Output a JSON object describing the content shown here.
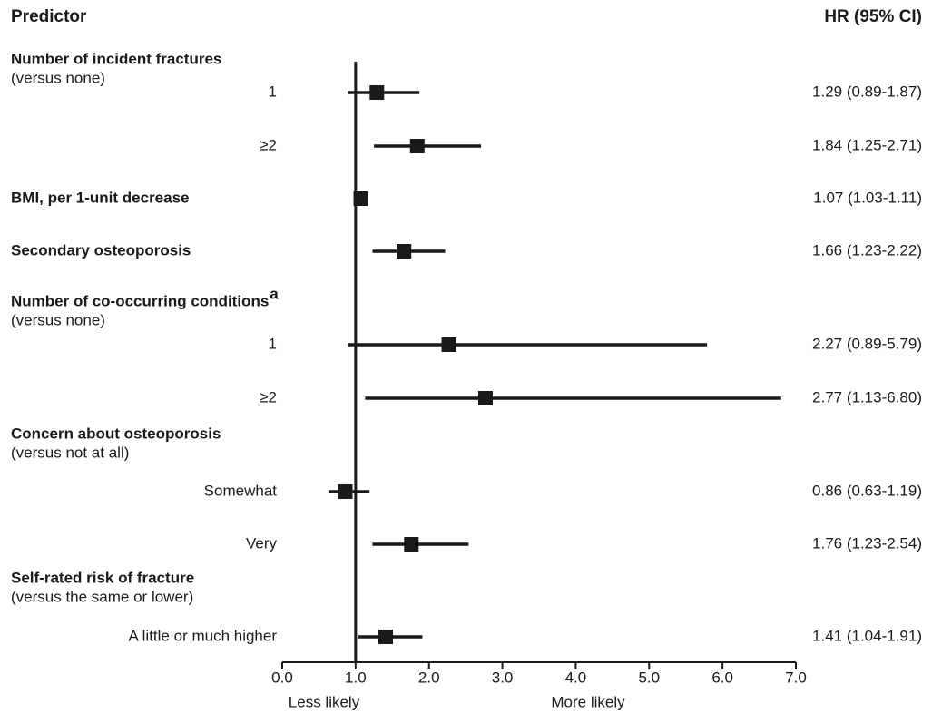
{
  "chart_data": {
    "type": "forest",
    "header_left": "Predictor",
    "header_right": "HR (95% CI)",
    "reference": 1,
    "xlim": [
      0,
      7
    ],
    "xticks": [
      {
        "value": 0,
        "label": "0.0"
      },
      {
        "value": 1,
        "label": "1.0"
      },
      {
        "value": 2,
        "label": "2.0"
      },
      {
        "value": 3,
        "label": "3.0"
      },
      {
        "value": 4,
        "label": "4.0"
      },
      {
        "value": 5,
        "label": "5.0"
      },
      {
        "value": 6,
        "label": "6.0"
      },
      {
        "value": 7,
        "label": "7.0"
      }
    ],
    "x_label_left": "Less likely",
    "x_label_right": "More likely",
    "color": "#1a1a1a",
    "rows": [
      {
        "heading": "Number of incident fractures",
        "note": "(versus none)"
      },
      {
        "label": "1",
        "hr": 1.29,
        "lo": 0.89,
        "hi": 1.87,
        "value_label": "1.29 (0.89-1.87)"
      },
      {
        "label": "≥2",
        "hr": 1.84,
        "lo": 1.25,
        "hi": 2.71,
        "value_label": "1.84 (1.25-2.71)"
      },
      {
        "heading": "BMI, per 1-unit decrease",
        "hr": 1.07,
        "lo": 1.03,
        "hi": 1.11,
        "value_label": "1.07 (1.03-1.11)"
      },
      {
        "heading": "Secondary osteoporosis",
        "hr": 1.66,
        "lo": 1.23,
        "hi": 2.22,
        "value_label": "1.66 (1.23-2.22)"
      },
      {
        "heading": "Number of co-occurring conditions",
        "superscript": "a",
        "note": "(versus none)"
      },
      {
        "label": "1",
        "hr": 2.27,
        "lo": 0.89,
        "hi": 5.79,
        "value_label": "2.27 (0.89-5.79)"
      },
      {
        "label": "≥2",
        "hr": 2.77,
        "lo": 1.13,
        "hi": 6.8,
        "value_label": "2.77 (1.13-6.80)"
      },
      {
        "heading": "Concern about osteoporosis",
        "note": "(versus not at all)"
      },
      {
        "label": "Somewhat",
        "hr": 0.86,
        "lo": 0.63,
        "hi": 1.19,
        "value_label": "0.86 (0.63-1.19)"
      },
      {
        "label": "Very",
        "hr": 1.76,
        "lo": 1.23,
        "hi": 2.54,
        "value_label": "1.76 (1.23-2.54)"
      },
      {
        "heading": "Self-rated risk of fracture",
        "note": "(versus the same or lower)"
      },
      {
        "label": "A little or much higher",
        "hr": 1.41,
        "lo": 1.04,
        "hi": 1.91,
        "value_label": "1.41 (1.04-1.91)"
      }
    ]
  }
}
